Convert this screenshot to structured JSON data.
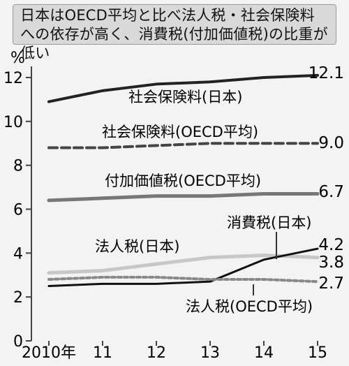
{
  "chart_data": {
    "type": "line",
    "title": "日本はOECD平均と比べ法人税・社会保険料への依存が高く、消費税(付加価値税)の比重が低い",
    "xlabel": "",
    "ylabel": "%",
    "ylim": [
      0,
      12.5
    ],
    "x": [
      "2010年",
      "11",
      "12",
      "13",
      "14",
      "15"
    ],
    "y_ticks": [
      "0",
      "2",
      "4",
      "6",
      "8",
      "10",
      "12"
    ],
    "grid": false,
    "series": [
      {
        "name": "社会保険料(日本)",
        "values": [
          10.9,
          11.4,
          11.7,
          11.8,
          12.0,
          12.1
        ],
        "end_label": "12.1",
        "color": "#222222",
        "style": "solid"
      },
      {
        "name": "社会保険料(OECD平均)",
        "values": [
          8.8,
          8.8,
          8.9,
          9.0,
          9.0,
          9.0
        ],
        "end_label": "9.0",
        "color": "#444444",
        "style": "dashed"
      },
      {
        "name": "付加価値税(OECD平均)",
        "values": [
          6.4,
          6.5,
          6.6,
          6.6,
          6.7,
          6.7
        ],
        "end_label": "6.7",
        "color": "#777777",
        "style": "solid-gray"
      },
      {
        "name": "法人税(日本)",
        "values": [
          3.1,
          3.2,
          3.5,
          3.8,
          3.9,
          3.8
        ],
        "end_label": "3.8",
        "color": "#c7c7c7",
        "style": "light"
      },
      {
        "name": "消費税(日本)",
        "values": [
          2.5,
          2.6,
          2.6,
          2.7,
          3.7,
          4.2
        ],
        "end_label": "4.2",
        "color": "#111111",
        "style": "solid-thin"
      },
      {
        "name": "法人税(OECD平均)",
        "values": [
          2.8,
          2.9,
          2.9,
          2.8,
          2.8,
          2.7
        ],
        "end_label": "2.7",
        "color": "#888888",
        "style": "dotted"
      }
    ]
  }
}
